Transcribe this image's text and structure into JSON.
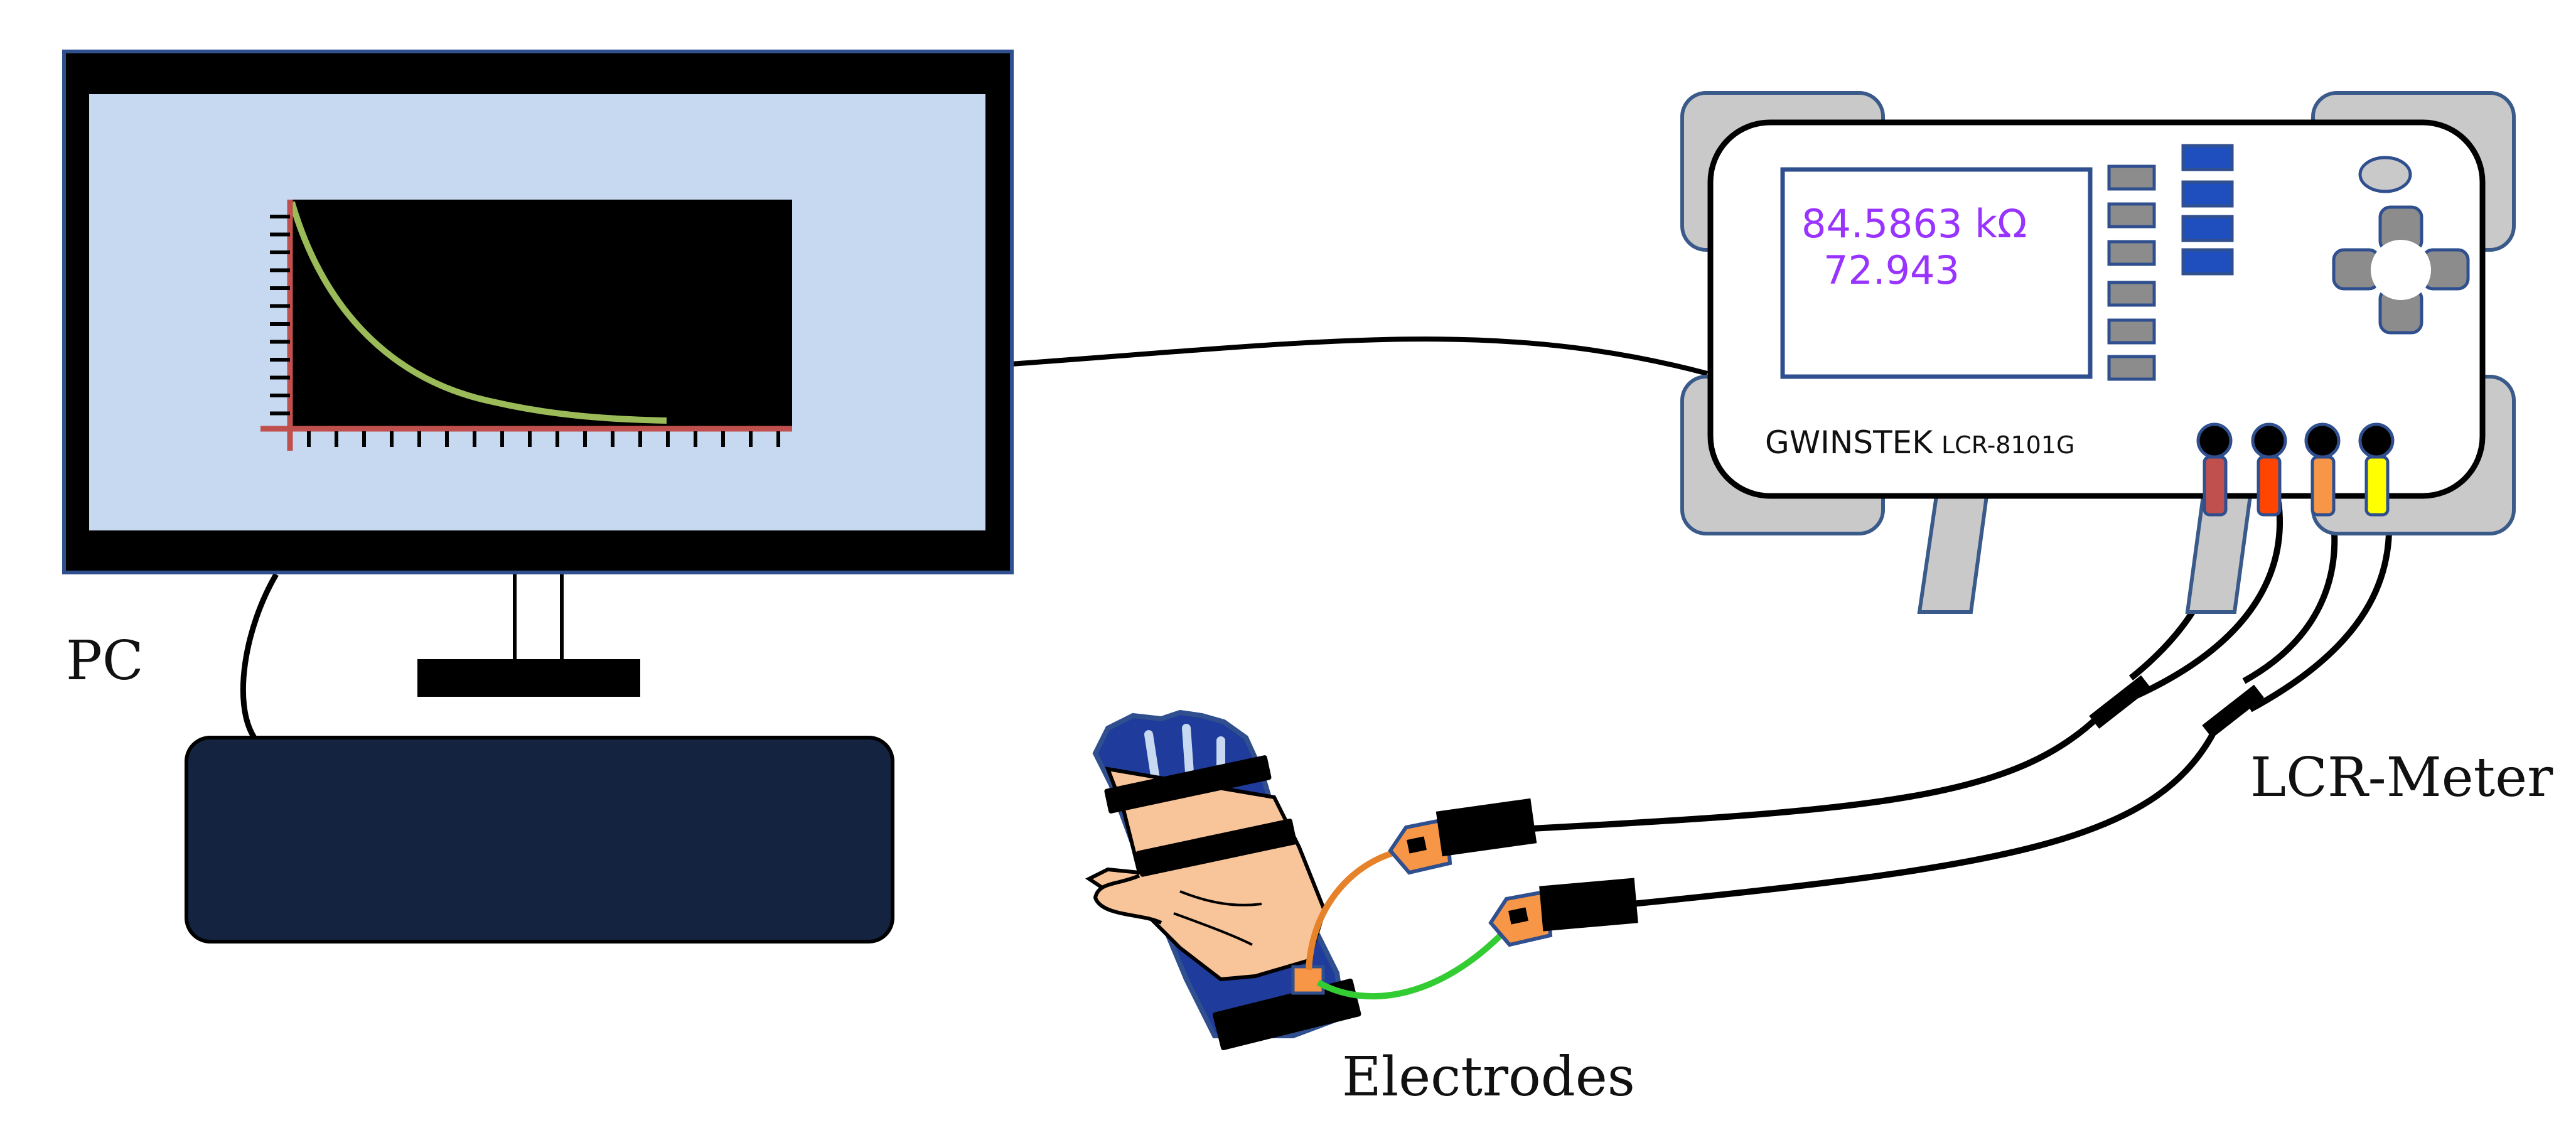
{
  "labels": {
    "pc": "PC",
    "lcr_meter": "LCR-Meter",
    "electrodes": "Electrodes"
  },
  "meter": {
    "brand": "GWINSTEK",
    "model": "LCR-8101G",
    "display_line1": "84.5863 kΩ",
    "display_line2": "72.943"
  },
  "colors": {
    "screen_bg": "#c6d9f0",
    "keyboard": "#14233f",
    "curve": "#9bbb59",
    "axis": "#c0504d",
    "display_text": "#9933ff",
    "meter_buttons_blue": "#1f4fbf",
    "lead_red": "#c0504d",
    "lead_orange_red": "#ff4500",
    "lead_orange": "#f79646",
    "lead_yellow": "#ffff00",
    "wire_orange": "#e6822a",
    "wire_green": "#33cc33",
    "glove_blue": "#1f3c9c",
    "skin": "#f8c49a"
  }
}
